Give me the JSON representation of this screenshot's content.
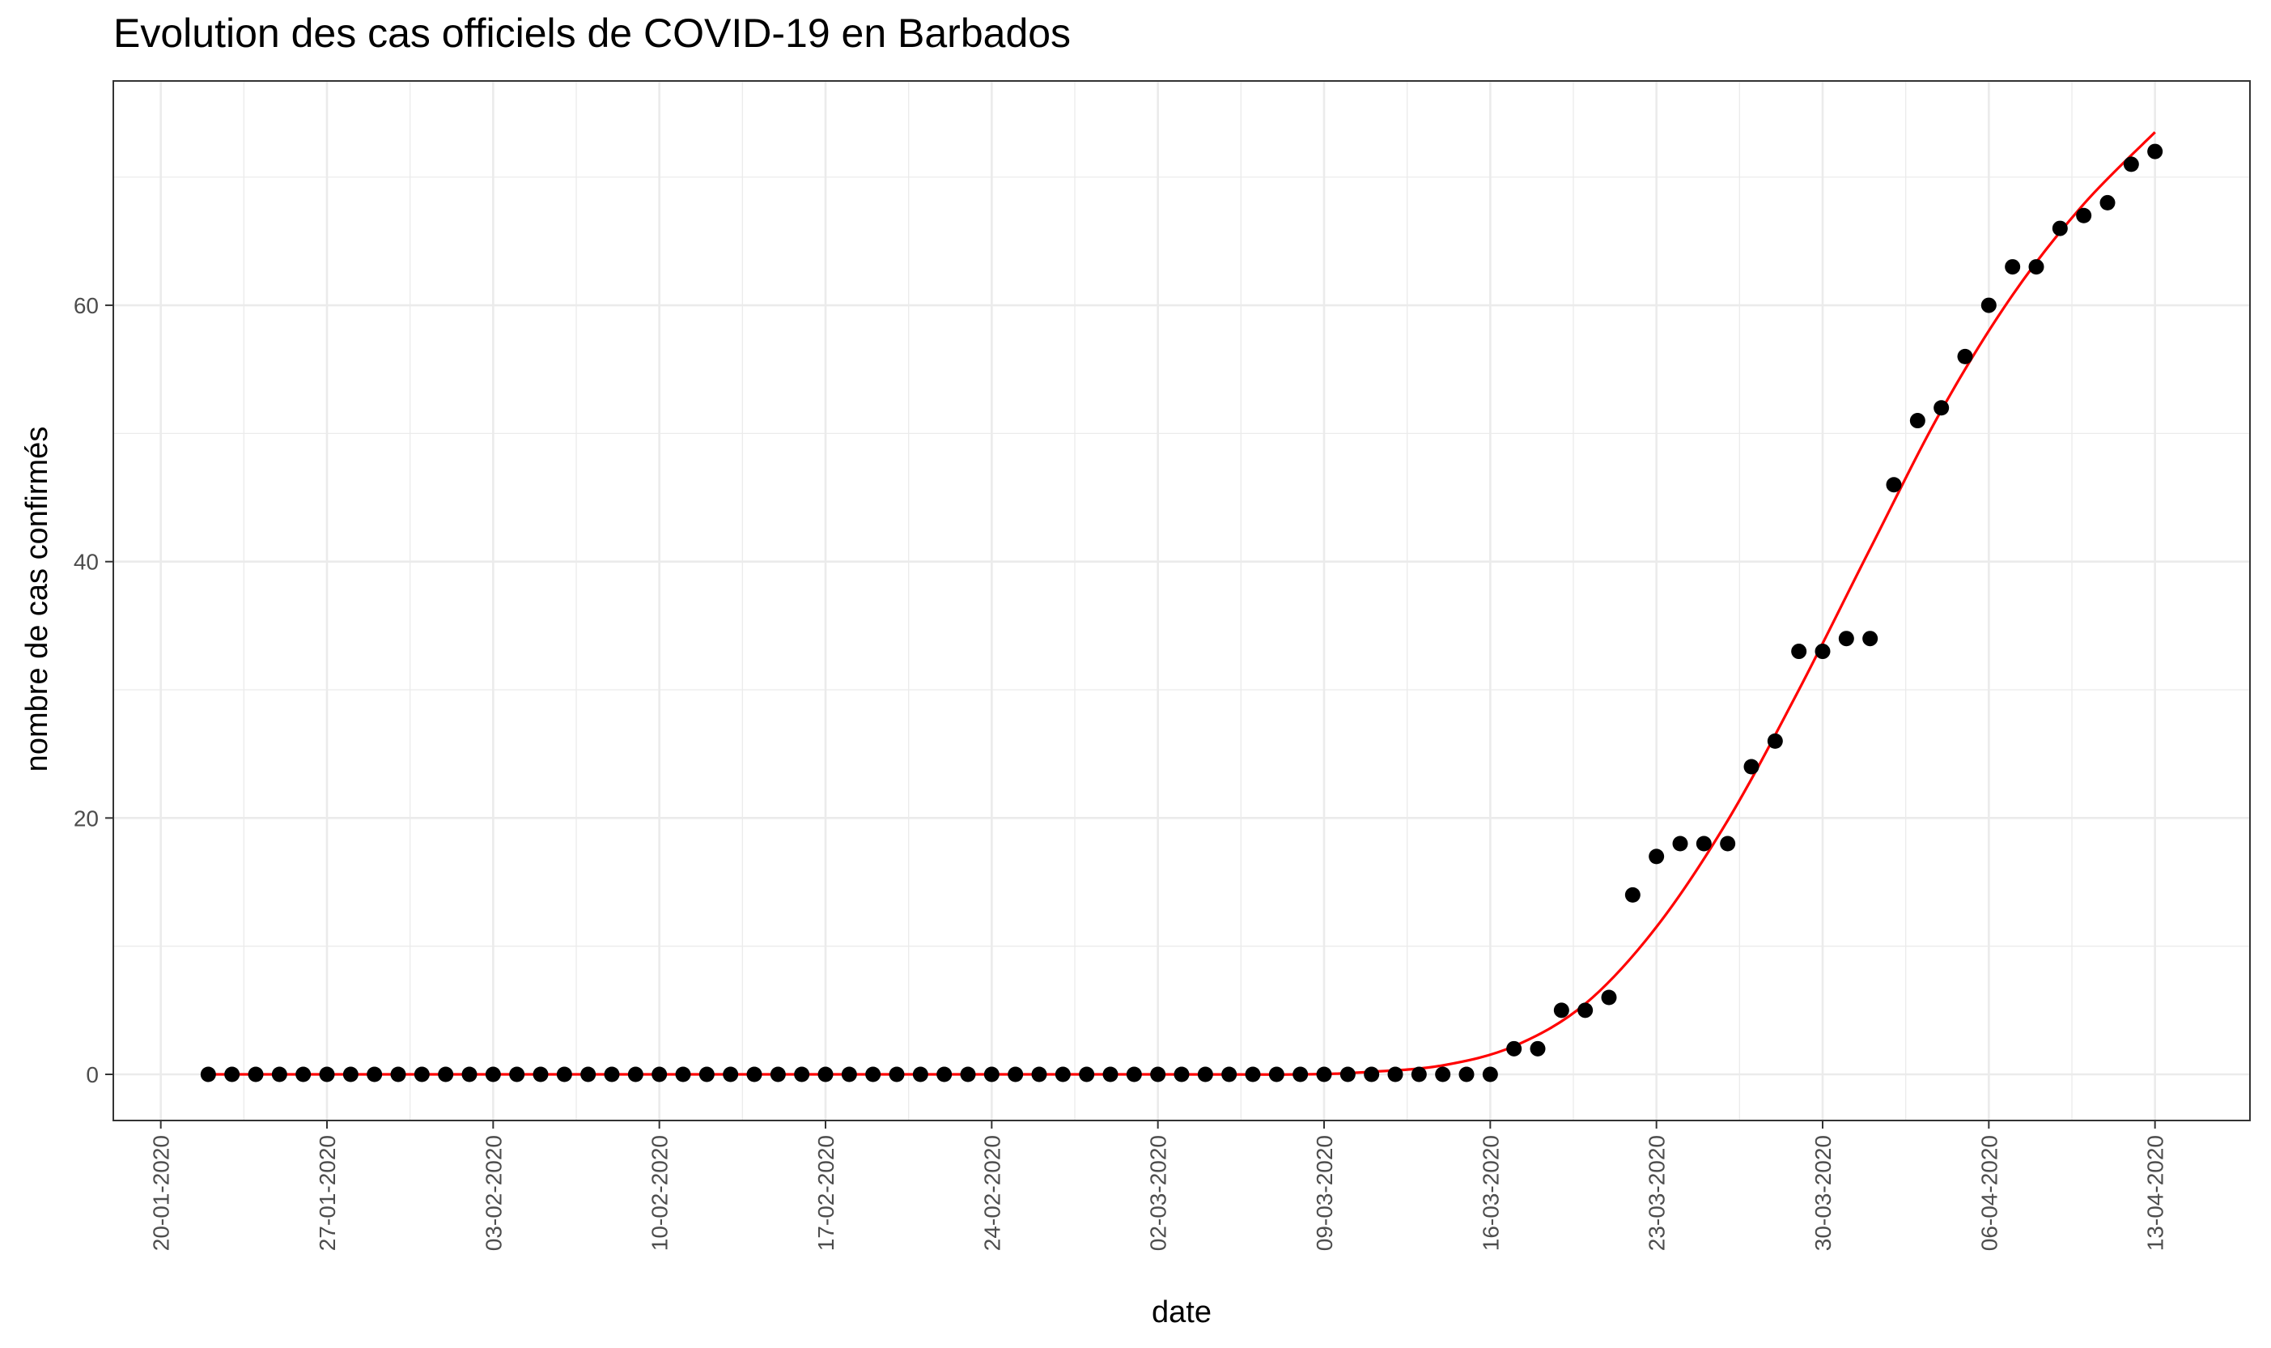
{
  "chart_data": {
    "type": "scatter",
    "title": "Evolution des cas officiels de COVID-19 en Barbados",
    "xlabel": "date",
    "ylabel": "nombre de cas confirmés",
    "x_ticks": [
      "20-01-2020",
      "27-01-2020",
      "03-02-2020",
      "10-02-2020",
      "17-02-2020",
      "24-02-2020",
      "02-03-2020",
      "09-03-2020",
      "16-03-2020",
      "23-03-2020",
      "30-03-2020",
      "06-04-2020",
      "13-04-2020"
    ],
    "y_ticks": [
      0,
      20,
      40,
      60
    ],
    "xlim": [
      "2020-01-18",
      "2020-04-17"
    ],
    "ylim": [
      -3.6,
      77.5
    ],
    "grid": true,
    "colors": {
      "points": "#000000",
      "fit_line": "#ff0000",
      "grid": "#ebebeb",
      "panel_border": "#333333"
    },
    "series": [
      {
        "kind": "points",
        "start_date": "2020-01-22",
        "values": [
          0,
          0,
          0,
          0,
          0,
          0,
          0,
          0,
          0,
          0,
          0,
          0,
          0,
          0,
          0,
          0,
          0,
          0,
          0,
          0,
          0,
          0,
          0,
          0,
          0,
          0,
          0,
          0,
          0,
          0,
          0,
          0,
          0,
          0,
          0,
          0,
          0,
          0,
          0,
          0,
          0,
          0,
          0,
          0,
          0,
          0,
          0,
          0,
          0,
          0,
          0,
          0,
          0,
          0,
          0,
          2,
          2,
          5,
          5,
          6,
          14,
          17,
          18,
          18,
          18,
          24,
          26,
          33,
          33,
          34,
          34,
          46,
          51,
          52,
          56,
          60,
          63,
          63,
          66,
          67,
          68,
          71,
          72
        ]
      },
      {
        "kind": "smooth-fit",
        "x": [
          "2020-01-22",
          "2020-03-01",
          "2020-03-08",
          "2020-03-11",
          "2020-03-14",
          "2020-03-17",
          "2020-03-20",
          "2020-03-23",
          "2020-03-26",
          "2020-03-29",
          "2020-04-01",
          "2020-04-04",
          "2020-04-07",
          "2020-04-10",
          "2020-04-13"
        ],
        "values": [
          0,
          0,
          0,
          0.2,
          0.7,
          2.2,
          5.5,
          11.5,
          19.8,
          30,
          41,
          51.8,
          60.8,
          67.9,
          73.5
        ]
      }
    ]
  }
}
